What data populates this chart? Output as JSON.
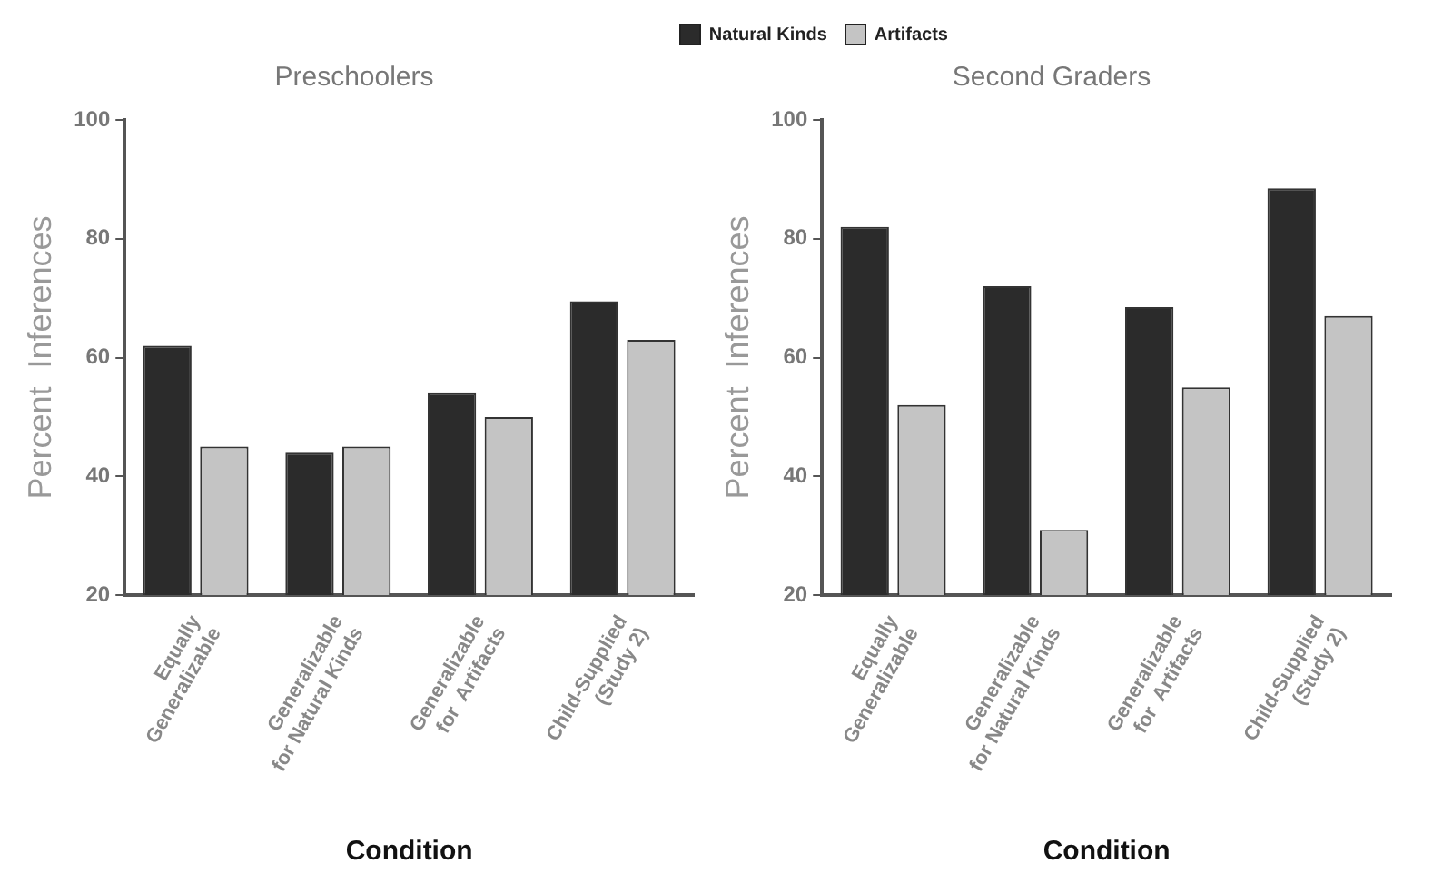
{
  "chart_data": [
    {
      "type": "bar",
      "title": "Preschoolers",
      "xlabel": "Condition",
      "ylabel": "Percent  Inferences",
      "categories": [
        "Equally\nGeneralizable",
        "Generalizable\nfor Natural Kinds",
        "Generalizable\nfor  Artifacts",
        "Child-Supplied\n(Study 2)"
      ],
      "series": [
        {
          "name": "Natural Kinds",
          "color": "#2b2b2b",
          "values": [
            62,
            44,
            54,
            69.5
          ]
        },
        {
          "name": "Artifacts",
          "color": "#c4c4c4",
          "values": [
            45,
            45,
            50,
            63
          ]
        }
      ],
      "ylim": [
        20,
        100
      ],
      "yticks": [
        20,
        40,
        60,
        80,
        100
      ],
      "grid": false,
      "legend": "top right"
    },
    {
      "type": "bar",
      "title": "Second Graders",
      "xlabel": "Condition",
      "ylabel": "Percent  Inferences",
      "categories": [
        "Equally\nGeneralizable",
        "Generalizable\nfor Natural Kinds",
        "Generalizable\nfor  Artifacts",
        "Child-Supplied\n(Study 2)"
      ],
      "series": [
        {
          "color": "#2b2b2b",
          "values": [
            82,
            72,
            68.5,
            88.5
          ]
        },
        {
          "color": "#c4c4c4",
          "values": [
            52,
            31,
            55,
            67
          ]
        }
      ],
      "ylim": [
        20,
        100
      ],
      "yticks": [
        20,
        40,
        60,
        80,
        100
      ],
      "grid": false,
      "legend": false
    }
  ]
}
